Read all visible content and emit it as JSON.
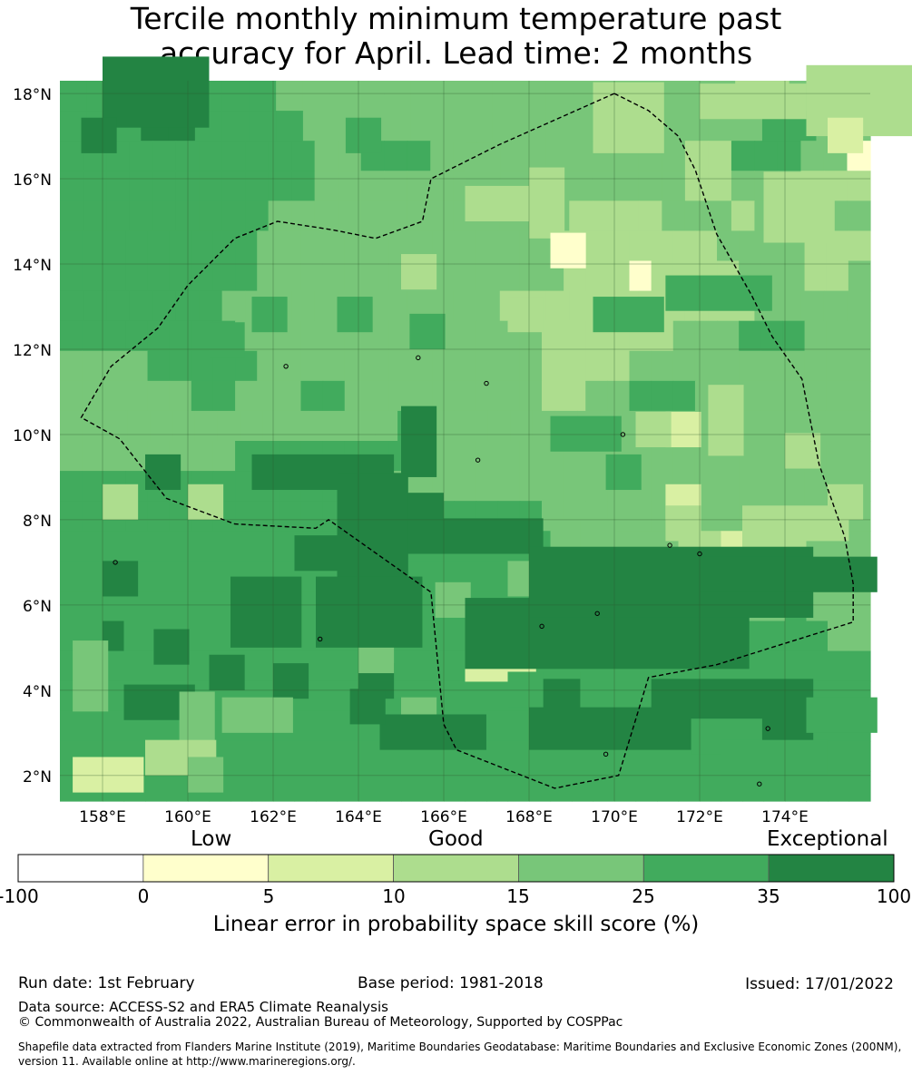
{
  "title": {
    "line1": "Tercile monthly minimum temperature past",
    "line2": "accuracy for April. Lead time: 2 months"
  },
  "map": {
    "lat_labels": [
      "18°N",
      "16°N",
      "14°N",
      "12°N",
      "10°N",
      "8°N",
      "6°N",
      "4°N",
      "2°N"
    ],
    "lon_labels": [
      "158°E",
      "160°E",
      "162°E",
      "164°E",
      "166°E",
      "168°E",
      "170°E",
      "172°E",
      "174°E"
    ],
    "lat_values": [
      18,
      16,
      14,
      12,
      10,
      8,
      6,
      4,
      2
    ],
    "lon_values": [
      158,
      160,
      162,
      164,
      166,
      168,
      170,
      172,
      174
    ],
    "lon_range": [
      157,
      176
    ],
    "lat_range": [
      1.4,
      18.3
    ],
    "cell_deg": 0.833,
    "levels": {
      "A": "#ffffcc",
      "B": "#d9f0a3",
      "C": "#addd8e",
      "D": "#78c679",
      "E": "#41ab5d",
      "F": "#238443"
    },
    "grid_rows": [
      "EEEEEEEEDDDDDDDDDDDDDDDDDCCDDE",
      "EEEFFEEEEDDDDDDDDDDDDDDDDDEEDD",
      "EEEEEEEEEEEDDEEEDDDDDDDDDDDCCEEEDDA",
      "EEEEEEEEEEEDDDDDDDDDDDDDDDDCCDDDCCC",
      "EEEEEEEEEDDDDDDDDDDDDDCCCCDDDCDDDDD",
      "EEEEEEEEEDDDDDDDDDDDDDDCCCCCCCDDDDCCC",
      "EEEEEEEEEDDDDDDDDDDDDDDCCCACCCCDDDCCD",
      "EEEEEEEDDDDDDDDDDDDCCCCCCCCCCCDDDDD",
      "EEEEEEEEDDDDDDDDDDDDDDCCCCCCDDDEEEDDD",
      "DDDDEEEEEDDDDDDDDDDDDDCCCCDDDDDDDDDDD",
      "DDDDDDEEDDDEEDDDDDDDDDCCDDEEEDDDDDDDD",
      "DDDDDDDDDDDDDDDEDDDDDDDDDDDDDDDDDDDD",
      "DDDDDDDDEEEEEEEEEDDDDDDDDDDDDDDDDDDDD",
      "EEEEEEEEEEEEEEEDDDDDDDDDDDDDDDDDDDDDD",
      "EEEEEEEEEEEEEEEEEEEEEEDDDDDDDDDDDDDDD",
      "EEEEEEEEEEEEEEEEEEEEEEEEEEDDDCCBCCCDDD",
      "EEEEEEEEEEEEEEEEEEEEEEEEEEEEEDDDDDDDDD",
      "EEEEEEEEEEEEEEEEEEEEEEEEEEEEEEEEDDEDDD",
      "EEFEEEEEEEEEEEEEEEEEEEEEEEEEEEEEEEEEDD",
      "EEEEEEEEEEEEEEEEEEEEEEEEEEEEEEEEEEEEEE",
      "EEEEEEEEEEEEEEEEEEEEEEEEEEEEEEEEEEEEEE",
      "EEEEEEEEEEEEEEEEEEEEEEEEEEEEEEEEEEEEEE",
      "EEEEEEEEEEEEEEEEEEEEEEEEEEEEEEEEEEEEEE",
      "EEEEEEEEEEEEEEEEEEEEEEEEEEEEEEEEEEEEEE"
    ],
    "patches": [
      [
        "B",
        166.5,
        4.2,
        2,
        2
      ],
      [
        "F",
        158.0,
        17.2,
        3,
        2
      ],
      [
        "F",
        157.5,
        16.6,
        1,
        1
      ],
      [
        "E",
        163.7,
        16.6,
        1,
        1
      ],
      [
        "D",
        166.5,
        16.0,
        1,
        1
      ],
      [
        "C",
        166.5,
        15.0,
        2,
        1
      ],
      [
        "C",
        168.0,
        14.6,
        1,
        2
      ],
      [
        "A",
        168.5,
        13.9,
        1,
        1
      ],
      [
        "C",
        169.5,
        16.6,
        2,
        2
      ],
      [
        "C",
        172.0,
        17.4,
        3,
        1
      ],
      [
        "C",
        174.5,
        17.0,
        3,
        2
      ],
      [
        "B",
        175.0,
        16.6,
        1,
        1
      ],
      [
        "C",
        173.5,
        14.5,
        2,
        2
      ],
      [
        "E",
        171.2,
        12.9,
        3,
        1
      ],
      [
        "E",
        169.5,
        12.4,
        2,
        1
      ],
      [
        "C",
        167.5,
        12.4,
        1,
        1
      ],
      [
        "E",
        165.2,
        12.0,
        1,
        1
      ],
      [
        "E",
        163.5,
        12.4,
        1,
        1
      ],
      [
        "E",
        161.5,
        12.4,
        1,
        1
      ],
      [
        "E",
        160.5,
        11.8,
        1,
        1
      ],
      [
        "C",
        165.0,
        13.4,
        1,
        1
      ],
      [
        "B",
        171.2,
        9.7,
        1,
        1
      ],
      [
        "C",
        170.5,
        9.7,
        1,
        1
      ],
      [
        "C",
        172.2,
        9.5,
        1,
        2
      ],
      [
        "C",
        174.0,
        9.2,
        1,
        1
      ],
      [
        "E",
        168.5,
        9.6,
        2,
        1
      ],
      [
        "E",
        169.8,
        8.7,
        1,
        1
      ],
      [
        "F",
        165.0,
        9.0,
        1,
        2
      ],
      [
        "F",
        161.5,
        8.7,
        4,
        1
      ],
      [
        "F",
        159.0,
        8.7,
        1,
        1
      ],
      [
        "C",
        158.0,
        8.0,
        1,
        1
      ],
      [
        "C",
        160.0,
        8.0,
        1,
        1
      ],
      [
        "B",
        171.2,
        8.0,
        1,
        1
      ],
      [
        "C",
        171.2,
        7.5,
        1,
        1
      ],
      [
        "C",
        173.0,
        7.5,
        3,
        1
      ],
      [
        "C",
        175.0,
        8.0,
        1,
        1
      ],
      [
        "F",
        163.5,
        7.8,
        3,
        1
      ],
      [
        "F",
        165.0,
        7.2,
        4,
        1
      ],
      [
        "F",
        162.5,
        6.8,
        2,
        1
      ],
      [
        "D",
        168.5,
        7.2,
        1,
        1
      ],
      [
        "D",
        169.2,
        7.2,
        1,
        1
      ],
      [
        "F",
        158.0,
        6.2,
        1,
        1
      ],
      [
        "F",
        163.5,
        6.6,
        2,
        3
      ],
      [
        "D",
        167.5,
        6.2,
        1,
        1
      ],
      [
        "D",
        165.8,
        5.7,
        1,
        1
      ],
      [
        "F",
        161.0,
        5.0,
        2,
        2
      ],
      [
        "F",
        159.2,
        4.6,
        1,
        1
      ],
      [
        "F",
        160.5,
        4.0,
        1,
        1
      ],
      [
        "F",
        162.0,
        3.8,
        1,
        1
      ],
      [
        "F",
        164.0,
        3.8,
        1,
        1
      ],
      [
        "D",
        164.0,
        4.4,
        1,
        1
      ],
      [
        "F",
        163.0,
        5.0,
        3,
        2
      ],
      [
        "F",
        158.5,
        3.3,
        2,
        1
      ],
      [
        "D",
        157.3,
        3.5,
        1,
        2
      ],
      [
        "D",
        160.8,
        3.0,
        2,
        1
      ],
      [
        "D",
        159.8,
        2.3,
        1,
        2
      ],
      [
        "C",
        159.0,
        2.0,
        2,
        1
      ],
      [
        "B",
        157.3,
        1.6,
        2,
        1
      ],
      [
        "D",
        160.0,
        1.6,
        1,
        1
      ],
      [
        "D",
        165.0,
        3.0,
        1,
        1
      ],
      [
        "F",
        164.5,
        2.6,
        3,
        1
      ],
      [
        "F",
        163.8,
        3.2,
        1,
        1
      ],
      [
        "F",
        166.5,
        4.5,
        8,
        2
      ],
      [
        "F",
        168.0,
        2.6,
        8,
        2
      ],
      [
        "F",
        168.0,
        5.7,
        8,
        2
      ],
      [
        "F",
        172.0,
        6.3,
        5,
        1
      ],
      [
        "E",
        167.5,
        3.6,
        1,
        1
      ],
      [
        "E",
        169.2,
        3.6,
        2,
        1
      ],
      [
        "E",
        171.8,
        2.5,
        2,
        1
      ],
      [
        "E",
        172.5,
        2.0,
        3,
        1
      ],
      [
        "E",
        174.5,
        3.0,
        2,
        1
      ]
    ],
    "eez_boundary_points": [
      [
        170.0,
        18.0
      ],
      [
        170.8,
        17.6
      ],
      [
        171.5,
        17.0
      ],
      [
        171.9,
        16.2
      ],
      [
        172.4,
        14.7
      ],
      [
        173.2,
        13.3
      ],
      [
        173.7,
        12.3
      ],
      [
        174.4,
        11.3
      ],
      [
        174.8,
        9.3
      ],
      [
        175.4,
        7.6
      ],
      [
        175.6,
        6.5
      ],
      [
        175.6,
        5.6
      ],
      [
        172.4,
        4.6
      ],
      [
        170.8,
        4.3
      ],
      [
        170.1,
        2.0
      ],
      [
        168.6,
        1.7
      ],
      [
        166.3,
        2.6
      ],
      [
        166.0,
        3.2
      ],
      [
        165.7,
        6.3
      ],
      [
        163.3,
        8.0
      ],
      [
        163.0,
        7.8
      ],
      [
        161.1,
        7.9
      ],
      [
        159.5,
        8.5
      ],
      [
        158.4,
        9.9
      ],
      [
        157.5,
        10.4
      ],
      [
        158.2,
        11.6
      ],
      [
        159.3,
        12.5
      ],
      [
        160.0,
        13.5
      ],
      [
        161.1,
        14.6
      ],
      [
        162.1,
        15.0
      ],
      [
        163.4,
        14.8
      ],
      [
        164.4,
        14.6
      ],
      [
        165.5,
        15.0
      ],
      [
        165.7,
        16.0
      ],
      [
        167.3,
        16.8
      ],
      [
        170.0,
        18.0
      ]
    ]
  },
  "colorbar": {
    "category_labels": [
      "Low",
      "Good",
      "Exceptional"
    ],
    "tick_labels": [
      "-100",
      "0",
      "5",
      "10",
      "15",
      "25",
      "35",
      "100"
    ],
    "colors": [
      "#ffffff",
      "#ffffcc",
      "#d9f0a3",
      "#addd8e",
      "#78c679",
      "#41ab5d",
      "#238443"
    ],
    "label": "Linear error in probability space skill score (%)"
  },
  "footer": {
    "run_date": "Run date: 1st February",
    "base_period": "Base period: 1981-2018",
    "issued": "Issued: 17/01/2022",
    "data_source": "Data source: ACCESS-S2 and ERA5 Climate Reanalysis",
    "copyright": "© Commonwealth of Australia 2022, Australian Bureau of Meteorology, Supported by COSPPac",
    "shapefile_line1": "Shapefile data extracted from Flanders Marine Institute (2019), Maritime Boundaries Geodatabase: Maritime Boundaries and Exclusive Economic Zones (200NM),",
    "shapefile_line2": "version 11. Available online at http://www.marineregions.org/."
  }
}
